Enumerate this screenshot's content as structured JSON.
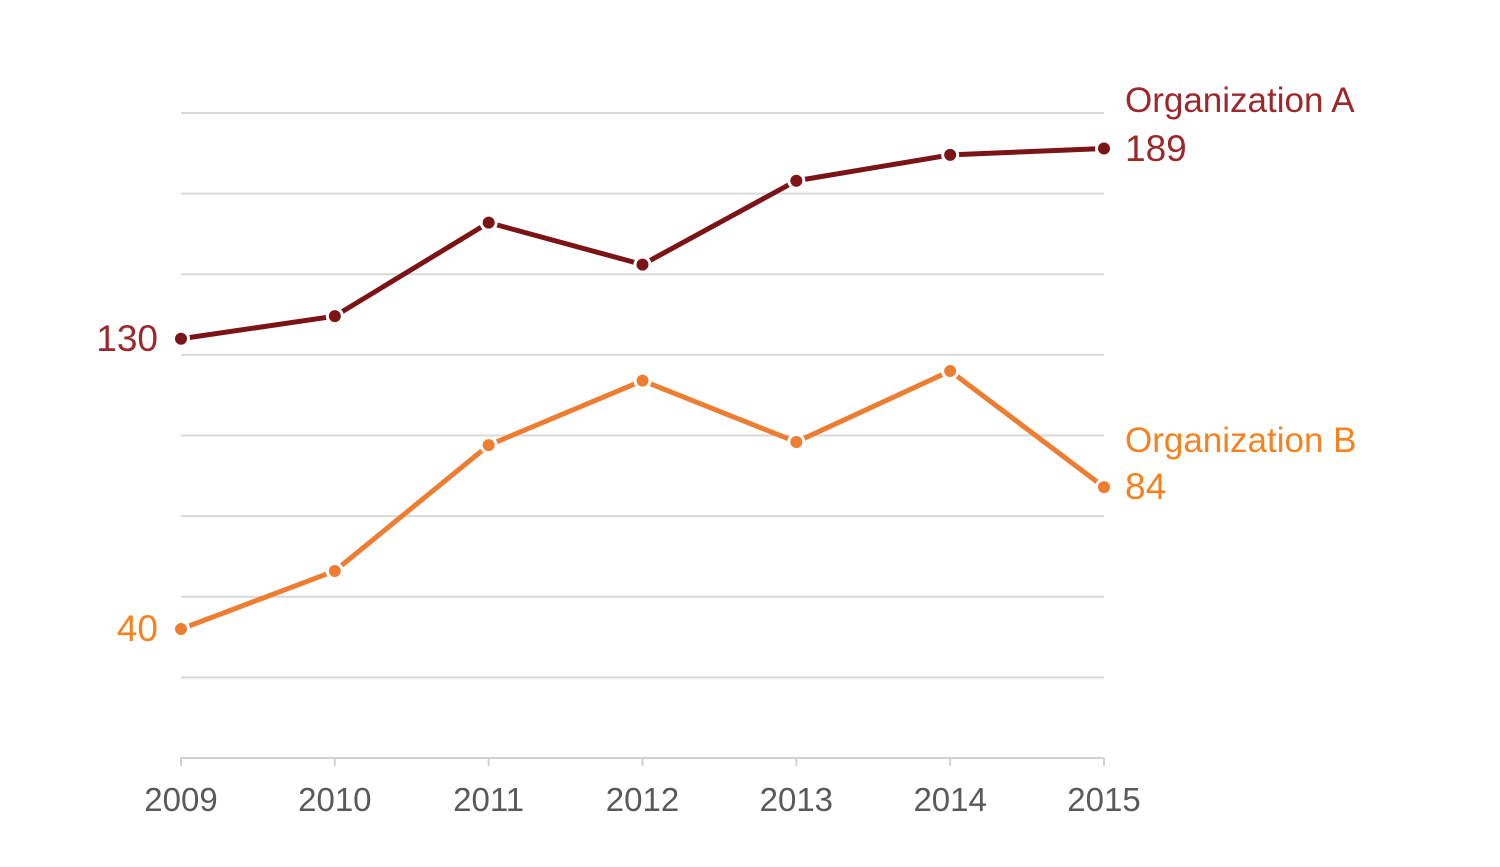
{
  "chart_data": {
    "type": "line",
    "x": [
      "2009",
      "2010",
      "2011",
      "2012",
      "2013",
      "2014",
      "2015"
    ],
    "series": [
      {
        "name": "Organization A",
        "values": [
          130,
          137,
          166,
          153,
          179,
          187,
          189
        ],
        "color": "#7C1417",
        "label_color": "#9C282C"
      },
      {
        "name": "Organization B",
        "values": [
          40,
          58,
          97,
          117,
          98,
          120,
          84
        ],
        "color": "#ED7D31",
        "label_color": "#F5821F"
      }
    ],
    "ylim": [
      0,
      200
    ],
    "gridline_values": [
      25,
      50,
      75,
      100,
      125,
      150,
      175,
      200
    ],
    "grid": true,
    "yaxis_tick_labels_shown": false,
    "annotations": {
      "series_a_first_point_label": "130",
      "series_a_last_point_label": "189",
      "series_b_first_point_label": "40",
      "series_b_last_point_label": "84"
    },
    "legend_position": "right of last data points",
    "styles": {
      "gridline_color": "#D9D9D9",
      "axis_line_color": "#D2D2D2",
      "x_tick_label_color": "#595959",
      "background_color": "#FFFFFF",
      "marker_ring_color": "#FFFFFF"
    }
  }
}
